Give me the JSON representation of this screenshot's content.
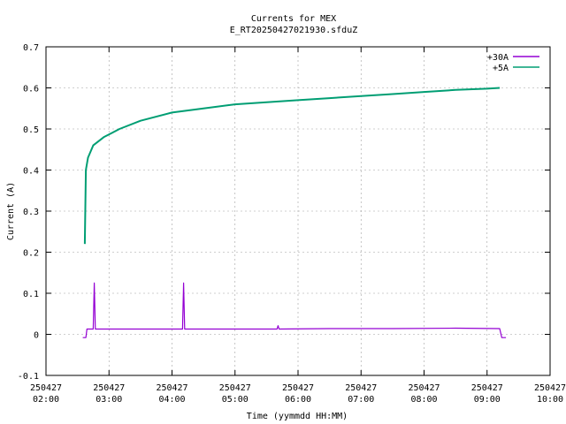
{
  "chart_data": {
    "type": "line",
    "title": "Currents for MEX",
    "subtitle": "E_RT20250427021930.sfduZ",
    "xlabel": "Time (yymmdd HH:MM)",
    "ylabel": "Current (A)",
    "xlim": [
      "2025-04-27 02:00",
      "2025-04-27 10:00"
    ],
    "ylim": [
      -0.1,
      0.7
    ],
    "grid": true,
    "legend_position": "top-right",
    "x_ticks": [
      {
        "date": "250427",
        "time": "02:00"
      },
      {
        "date": "250427",
        "time": "03:00"
      },
      {
        "date": "250427",
        "time": "04:00"
      },
      {
        "date": "250427",
        "time": "05:00"
      },
      {
        "date": "250427",
        "time": "06:00"
      },
      {
        "date": "250427",
        "time": "07:00"
      },
      {
        "date": "250427",
        "time": "08:00"
      },
      {
        "date": "250427",
        "time": "09:00"
      },
      {
        "date": "250427",
        "time": "10:00"
      }
    ],
    "y_ticks": [
      "-0.1",
      "0",
      "0.1",
      "0.2",
      "0.3",
      "0.4",
      "0.5",
      "0.6",
      "0.7"
    ],
    "series": [
      {
        "name": "+30A",
        "color": "#9400d3",
        "points": [
          [
            "2025-04-27 02:35",
            -0.008
          ],
          [
            "2025-04-27 02:38",
            -0.008
          ],
          [
            "2025-04-27 02:39",
            0.013
          ],
          [
            "2025-04-27 02:45",
            0.013
          ],
          [
            "2025-04-27 02:46",
            0.125
          ],
          [
            "2025-04-27 02:47",
            0.013
          ],
          [
            "2025-04-27 04:10",
            0.013
          ],
          [
            "2025-04-27 04:11",
            0.125
          ],
          [
            "2025-04-27 04:12",
            0.013
          ],
          [
            "2025-04-27 05:40",
            0.013
          ],
          [
            "2025-04-27 05:41",
            0.021
          ],
          [
            "2025-04-27 05:42",
            0.013
          ],
          [
            "2025-04-27 06:30",
            0.014
          ],
          [
            "2025-04-27 07:30",
            0.014
          ],
          [
            "2025-04-27 08:30",
            0.015
          ],
          [
            "2025-04-27 09:12",
            0.014
          ],
          [
            "2025-04-27 09:14",
            -0.008
          ],
          [
            "2025-04-27 09:18",
            -0.008
          ]
        ]
      },
      {
        "name": "+5A",
        "color": "#009e73",
        "points": [
          [
            "2025-04-27 02:37",
            0.22
          ],
          [
            "2025-04-27 02:38",
            0.4
          ],
          [
            "2025-04-27 02:40",
            0.43
          ],
          [
            "2025-04-27 02:45",
            0.46
          ],
          [
            "2025-04-27 02:55",
            0.48
          ],
          [
            "2025-04-27 03:10",
            0.5
          ],
          [
            "2025-04-27 03:30",
            0.52
          ],
          [
            "2025-04-27 04:00",
            0.54
          ],
          [
            "2025-04-27 04:30",
            0.55
          ],
          [
            "2025-04-27 05:00",
            0.56
          ],
          [
            "2025-04-27 05:30",
            0.565
          ],
          [
            "2025-04-27 06:00",
            0.57
          ],
          [
            "2025-04-27 06:30",
            0.575
          ],
          [
            "2025-04-27 07:00",
            0.58
          ],
          [
            "2025-04-27 07:30",
            0.585
          ],
          [
            "2025-04-27 08:00",
            0.59
          ],
          [
            "2025-04-27 08:30",
            0.595
          ],
          [
            "2025-04-27 09:00",
            0.598
          ],
          [
            "2025-04-27 09:12",
            0.6
          ]
        ]
      }
    ]
  }
}
